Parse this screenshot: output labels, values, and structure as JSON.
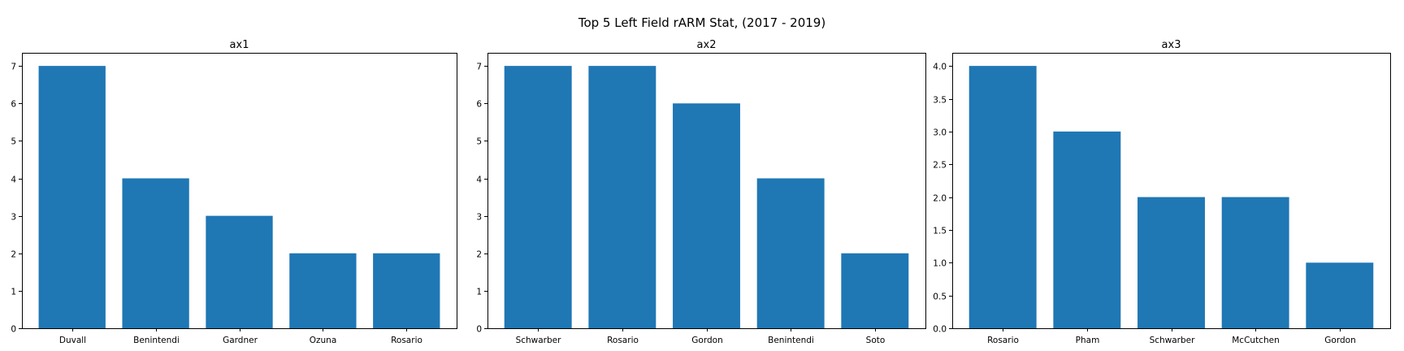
{
  "figure": {
    "suptitle": "Top 5 Left Field rARM Stat, (2017 - 2019)",
    "bar_color": "#1f77b4"
  },
  "chart_data": [
    {
      "type": "bar",
      "title": "ax1",
      "categories": [
        "Duvall",
        "Benintendi",
        "Gardner",
        "Ozuna",
        "Rosario"
      ],
      "values": [
        7,
        4,
        3,
        2,
        2
      ],
      "ylim": [
        0,
        7.35
      ],
      "yticks": [
        0,
        1,
        2,
        3,
        4,
        5,
        6,
        7
      ],
      "ytick_labels": [
        "0",
        "1",
        "2",
        "3",
        "4",
        "5",
        "6",
        "7"
      ],
      "xlabel": "",
      "ylabel": "",
      "grid": false
    },
    {
      "type": "bar",
      "title": "ax2",
      "categories": [
        "Schwarber",
        "Rosario",
        "Gordon",
        "Benintendi",
        "Soto"
      ],
      "values": [
        7,
        7,
        6,
        4,
        2
      ],
      "ylim": [
        0,
        7.35
      ],
      "yticks": [
        0,
        1,
        2,
        3,
        4,
        5,
        6,
        7
      ],
      "ytick_labels": [
        "0",
        "1",
        "2",
        "3",
        "4",
        "5",
        "6",
        "7"
      ],
      "xlabel": "",
      "ylabel": "",
      "grid": false
    },
    {
      "type": "bar",
      "title": "ax3",
      "categories": [
        "Rosario",
        "Pham",
        "Schwarber",
        "McCutchen",
        "Gordon"
      ],
      "values": [
        4,
        3,
        2,
        2,
        1
      ],
      "ylim": [
        0,
        4.2
      ],
      "yticks": [
        0,
        0.5,
        1,
        1.5,
        2,
        2.5,
        3,
        3.5,
        4
      ],
      "ytick_labels": [
        "0.0",
        "0.5",
        "1.0",
        "1.5",
        "2.0",
        "2.5",
        "3.0",
        "3.5",
        "4.0"
      ],
      "xlabel": "",
      "ylabel": "",
      "grid": false
    }
  ]
}
